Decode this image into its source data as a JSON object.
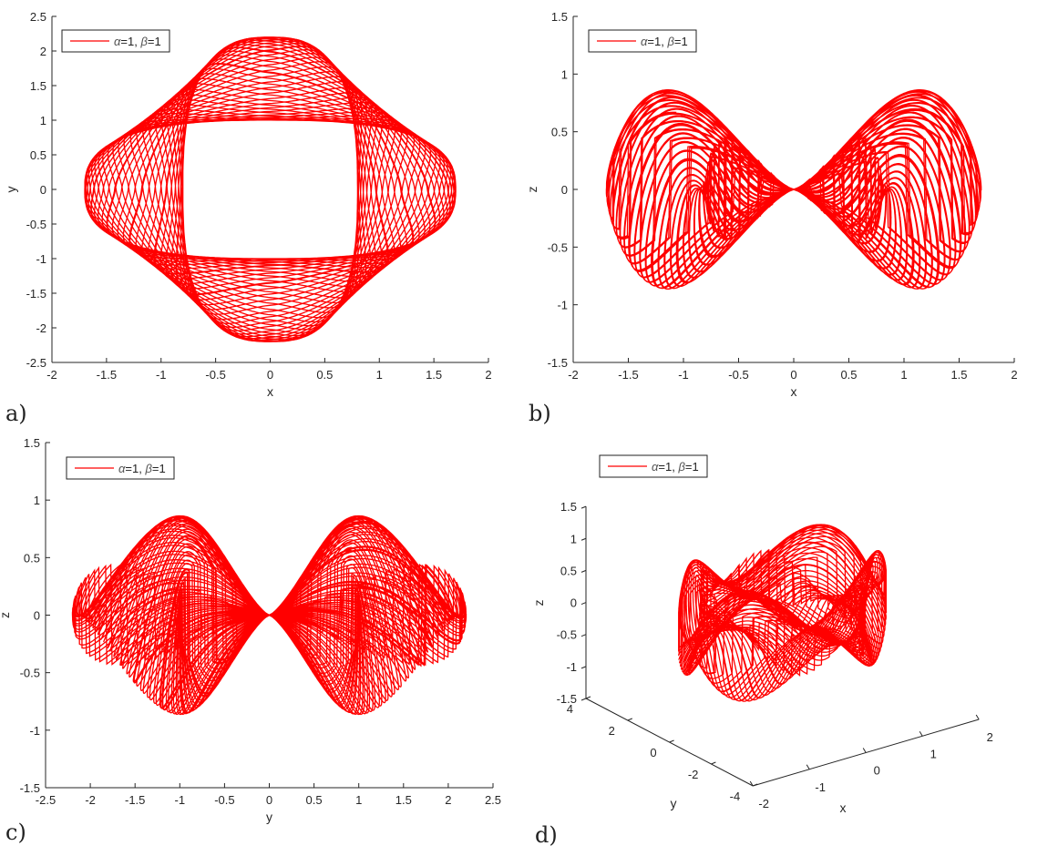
{
  "chart_data": [
    {
      "panel": "a)",
      "type": "line",
      "xlabel": "x",
      "ylabel": "y",
      "xlim": [
        -2,
        2
      ],
      "ylim": [
        -2.5,
        2.5
      ],
      "xticks": [
        "-2",
        "-1.5",
        "-1",
        "-0.5",
        "0",
        "0.5",
        "1",
        "1.5",
        "2"
      ],
      "yticks": [
        "-2.5",
        "-2",
        "-1.5",
        "-1",
        "-0.5",
        "0",
        "0.5",
        "1",
        "1.5",
        "2",
        "2.5"
      ],
      "legend": {
        "alpha": "α",
        "beta": "β",
        "text1": "=1, ",
        "text2": "=1",
        "placement": "top-left"
      },
      "color": "#ff0000",
      "grid": false
    },
    {
      "panel": "b)",
      "type": "line",
      "xlabel": "x",
      "ylabel": "z",
      "xlim": [
        -2,
        2
      ],
      "ylim": [
        -1.5,
        1.5
      ],
      "xticks": [
        "-2",
        "-1.5",
        "-1",
        "-0.5",
        "0",
        "0.5",
        "1",
        "1.5",
        "2"
      ],
      "yticks": [
        "-1.5",
        "-1",
        "-0.5",
        "0",
        "0.5",
        "1",
        "1.5"
      ],
      "legend": {
        "alpha": "α",
        "beta": "β",
        "text1": "=1, ",
        "text2": "=1",
        "placement": "top-left"
      },
      "color": "#ff0000",
      "grid": false
    },
    {
      "panel": "c)",
      "type": "line",
      "xlabel": "y",
      "ylabel": "z",
      "xlim": [
        -2.5,
        2.5
      ],
      "ylim": [
        -1.5,
        1.5
      ],
      "xticks": [
        "-2.5",
        "-2",
        "-1.5",
        "-1",
        "-0.5",
        "0",
        "0.5",
        "1",
        "1.5",
        "2",
        "2.5"
      ],
      "yticks": [
        "-1.5",
        "-1",
        "-0.5",
        "0",
        "0.5",
        "1",
        "1.5"
      ],
      "legend": {
        "alpha": "α",
        "beta": "β",
        "text1": "=1, ",
        "text2": "=1",
        "placement": "top-left"
      },
      "color": "#ff0000",
      "grid": false
    },
    {
      "panel": "d)",
      "type": "line3d",
      "xlabel": "x",
      "ylabel": "y",
      "zlabel": "z",
      "xlim": [
        -2,
        2
      ],
      "ylim": [
        -4,
        4
      ],
      "zlim": [
        -1.5,
        1.5
      ],
      "xticks": [
        "-2",
        "-1",
        "0",
        "1",
        "2"
      ],
      "yticks": [
        "-4",
        "-2",
        "0",
        "2",
        "4"
      ],
      "zticks": [
        "-1.5",
        "-1",
        "-0.5",
        "0",
        "0.5",
        "1",
        "1.5"
      ],
      "legend": {
        "alpha": "α",
        "beta": "β",
        "text1": "=1, ",
        "text2": "=1",
        "placement": "top-left"
      },
      "color": "#ff0000",
      "grid": false
    }
  ]
}
